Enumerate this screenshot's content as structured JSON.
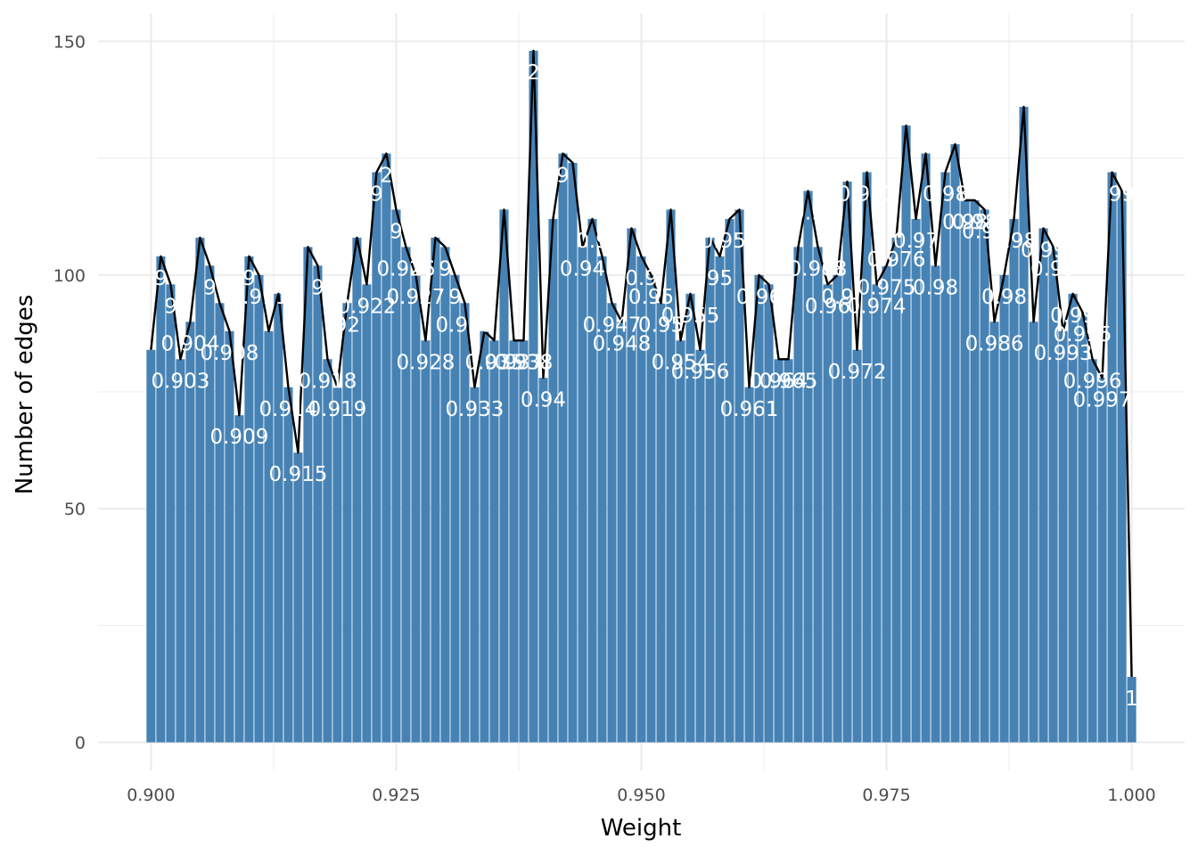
{
  "chart_data": {
    "type": "bar",
    "title": "",
    "xlabel": "Weight",
    "ylabel": "Number of edges",
    "xlim": [
      0.8946,
      1.0054
    ],
    "ylim": [
      -6,
      156
    ],
    "x_ticks": [
      "0.900",
      "0.925",
      "0.950",
      "0.975",
      "1.000"
    ],
    "x_tick_values": [
      0.9,
      0.925,
      0.95,
      0.975,
      1.0
    ],
    "y_ticks": [
      "0",
      "50",
      "100",
      "150"
    ],
    "y_tick_values": [
      0,
      50,
      100,
      150
    ],
    "grid": true,
    "bar_color": "#4682b4",
    "line_color": "#000000",
    "label_color": "#ffffff",
    "series": [
      {
        "x": [
          0.9,
          0.901,
          0.902,
          0.903,
          0.904,
          0.905,
          0.906,
          0.907,
          0.908,
          0.909,
          0.91,
          0.911,
          0.912,
          0.913,
          0.914,
          0.915,
          0.916,
          0.917,
          0.918,
          0.919,
          0.92,
          0.921,
          0.922,
          0.923,
          0.924,
          0.925,
          0.926,
          0.927,
          0.928,
          0.929,
          0.93,
          0.931,
          0.932,
          0.933,
          0.934,
          0.935,
          0.936,
          0.937,
          0.938,
          0.939,
          0.94,
          0.941,
          0.942,
          0.943,
          0.944,
          0.945,
          0.946,
          0.947,
          0.948,
          0.949,
          0.95,
          0.951,
          0.952,
          0.953,
          0.954,
          0.955,
          0.956,
          0.957,
          0.958,
          0.959,
          0.96,
          0.961,
          0.962,
          0.963,
          0.964,
          0.965,
          0.966,
          0.967,
          0.968,
          0.969,
          0.97,
          0.971,
          0.972,
          0.973,
          0.974,
          0.975,
          0.976,
          0.977,
          0.978,
          0.979,
          0.98,
          0.981,
          0.982,
          0.983,
          0.984,
          0.985,
          0.986,
          0.987,
          0.988,
          0.989,
          0.99,
          0.991,
          0.992,
          0.993,
          0.994,
          0.995,
          0.996,
          0.997,
          0.998,
          0.999,
          1.0
        ],
        "values": [
          84,
          104,
          98,
          82,
          90,
          108,
          102,
          94,
          88,
          70,
          104,
          100,
          88,
          96,
          76,
          62,
          106,
          102,
          82,
          76,
          94,
          108,
          98,
          122,
          126,
          114,
          106,
          100,
          86,
          108,
          106,
          100,
          94,
          76,
          88,
          86,
          114,
          86,
          86,
          148,
          78,
          112,
          126,
          124,
          106,
          112,
          104,
          94,
          90,
          110,
          104,
          100,
          94,
          114,
          86,
          96,
          84,
          108,
          104,
          112,
          114,
          76,
          100,
          98,
          82,
          82,
          106,
          118,
          106,
          98,
          100,
          120,
          84,
          122,
          98,
          102,
          108,
          132,
          112,
          126,
          102,
          122,
          128,
          116,
          116,
          114,
          90,
          100,
          112,
          136,
          90,
          110,
          106,
          88,
          96,
          92,
          82,
          78,
          122,
          118,
          14
        ],
        "labels": [
          "",
          "9",
          "9",
          "0.903",
          "0.904",
          "",
          "9",
          "",
          "0.908",
          "0.909",
          "9",
          "0.911",
          "",
          "",
          "0.914",
          "0.915",
          "",
          "9",
          "0.918",
          "0.919",
          "92",
          "",
          "0.922",
          "9",
          "2",
          "9",
          "0.926",
          "0.927",
          "0.928",
          "",
          "9",
          "9",
          "0.931",
          "0.933",
          "",
          "0.935",
          "",
          "0.937",
          "0.938",
          "2",
          "0.94",
          "",
          "9",
          "",
          "0.94",
          "0.9",
          "",
          "0.947",
          "0.948",
          "",
          "0.9",
          "0.95",
          "0.95",
          "",
          "0.954",
          "0.955",
          "0.956",
          "",
          "95",
          "0.957",
          "",
          "0.961",
          "0.96",
          "",
          "0.964",
          "0.965",
          "",
          "0.9",
          "0.968",
          "0.96",
          "0.9",
          "",
          "0.972",
          "0.973",
          "0.974",
          "0.975",
          "0.976",
          "",
          "0.97",
          "",
          "0.98",
          "0.98",
          "",
          "0.98",
          "0.98",
          "0.98",
          "0.986",
          "0.98",
          "0.98",
          "",
          "",
          "0.99",
          "0.99",
          "0.993",
          "0.99",
          "0.995",
          "0.996",
          "0.997",
          "0.99",
          "",
          "1"
        ]
      }
    ]
  }
}
